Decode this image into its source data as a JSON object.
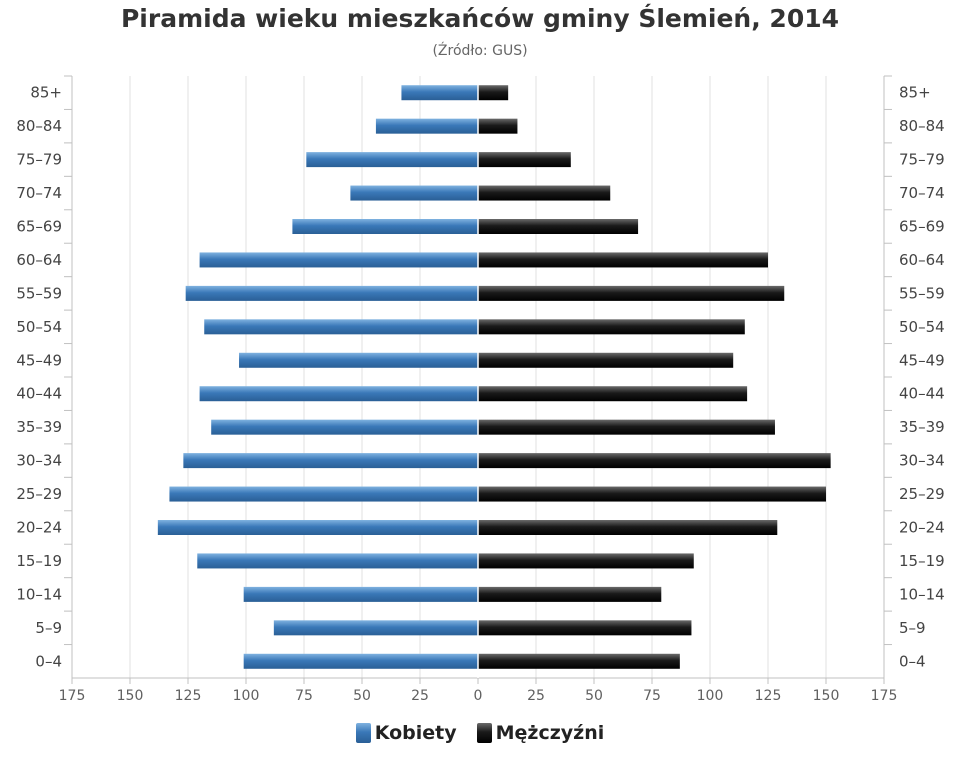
{
  "chart_data": {
    "type": "bar",
    "orientation": "horizontal-population-pyramid",
    "title": "Piramida wieku mieszkańców gminy Ślemień, 2014",
    "subtitle": "(Źródło: GUS)",
    "categories": [
      "85+",
      "80–84",
      "75–79",
      "70–74",
      "65–69",
      "60–64",
      "55–59",
      "50–54",
      "45–49",
      "40–44",
      "35–39",
      "30–34",
      "25–29",
      "20–24",
      "15–19",
      "10–14",
      "5–9",
      "0–4"
    ],
    "series": [
      {
        "name": "Kobiety",
        "color": "#3a78b8",
        "side": "left",
        "values": [
          33,
          44,
          74,
          55,
          80,
          120,
          126,
          118,
          103,
          120,
          115,
          127,
          133,
          138,
          121,
          101,
          88,
          101
        ]
      },
      {
        "name": "Mężczyźni",
        "color": "#1a1a1a",
        "side": "right",
        "values": [
          13,
          17,
          40,
          57,
          69,
          125,
          132,
          115,
          110,
          116,
          128,
          152,
          150,
          129,
          93,
          79,
          92,
          87
        ]
      }
    ],
    "x_ticks": [
      "175",
      "150",
      "125",
      "100",
      "75",
      "50",
      "25",
      "0",
      "25",
      "50",
      "75",
      "100",
      "125",
      "150",
      "175"
    ],
    "xlim": [
      -175,
      175
    ],
    "grid": true,
    "legend_position": "bottom-center"
  }
}
